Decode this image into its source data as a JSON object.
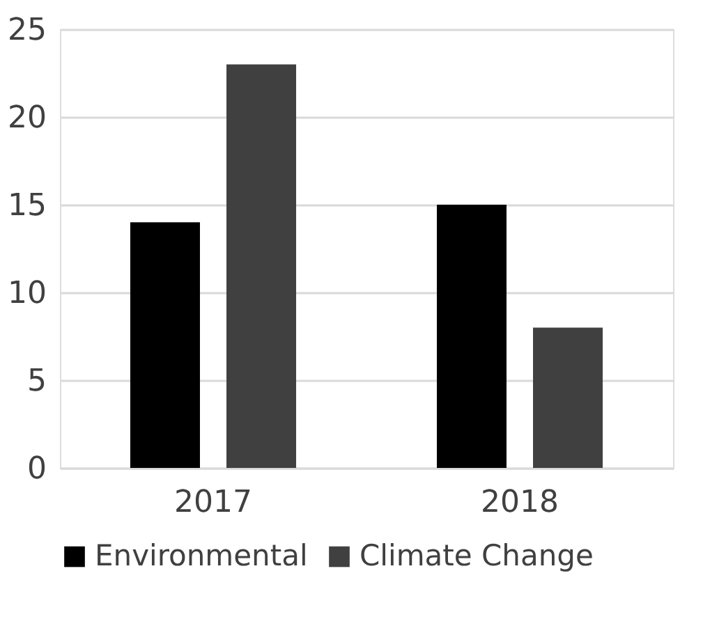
{
  "chart_data": {
    "type": "bar",
    "categories": [
      "2017",
      "2018"
    ],
    "series": [
      {
        "name": "Environmental",
        "color": "#000000",
        "values": [
          14,
          15
        ]
      },
      {
        "name": "Climate Change",
        "color": "#404040",
        "values": [
          23,
          8
        ]
      }
    ],
    "ylim": [
      0,
      25
    ],
    "yticks": [
      0,
      5,
      10,
      15,
      20,
      25
    ],
    "grid": "y",
    "legend": "bottom"
  }
}
